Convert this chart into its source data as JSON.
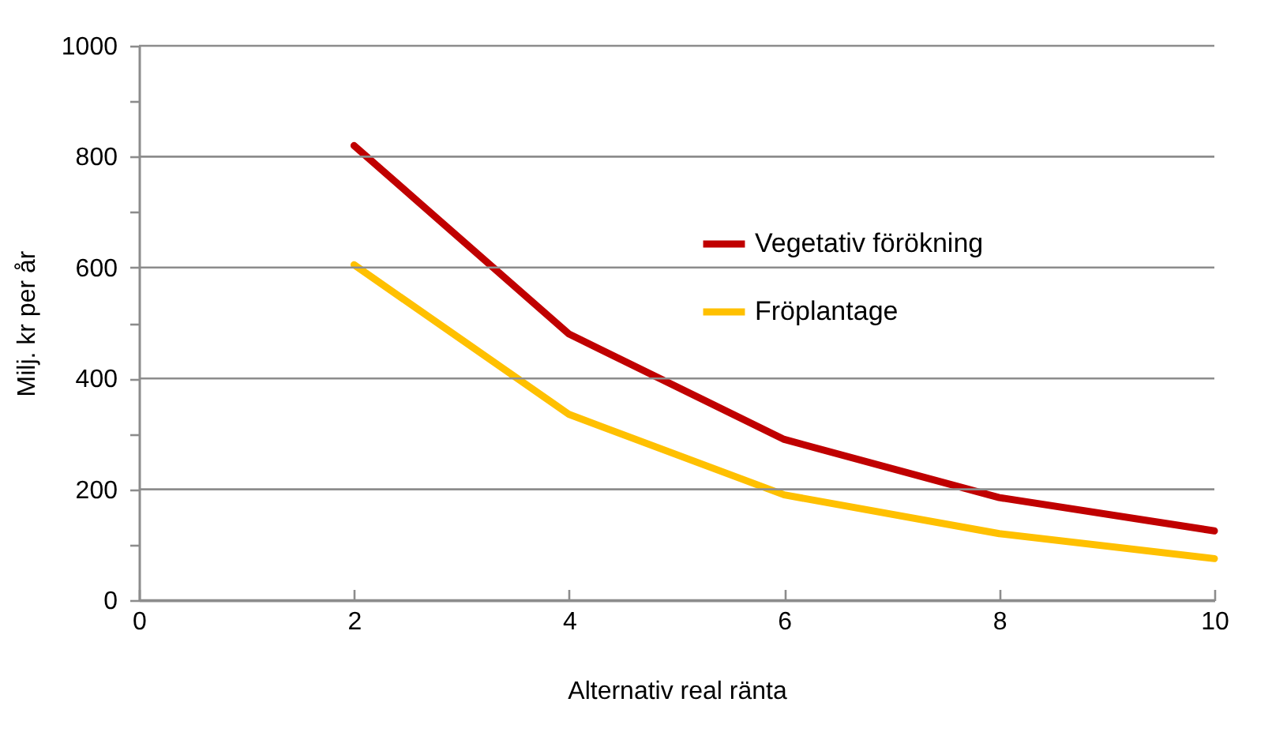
{
  "chart_data": {
    "type": "line",
    "xlabel": "Alternativ real ränta",
    "ylabel": "Milj. kr per år",
    "x": [
      2,
      4,
      6,
      8,
      10
    ],
    "series": [
      {
        "name": "Vegetativ förökning",
        "color": "#c00000",
        "values": [
          820,
          480,
          290,
          185,
          125
        ]
      },
      {
        "name": "Fröplantage",
        "color": "#ffc000",
        "values": [
          605,
          335,
          190,
          120,
          75
        ]
      }
    ],
    "xlim": [
      0,
      10
    ],
    "xticks": [
      0,
      2,
      4,
      6,
      8,
      10
    ],
    "ylim": [
      0,
      1000
    ],
    "yticks": [
      0,
      {
        "value": 100,
        "label": null
      },
      200,
      {
        "value": 300,
        "label": null
      },
      400,
      {
        "value": 500,
        "label": null
      },
      600,
      {
        "value": 700,
        "label": null
      },
      800,
      {
        "value": 900,
        "label": null
      },
      1000
    ],
    "grid": "y",
    "legend": "right",
    "marker": "none",
    "line_style": "solid"
  }
}
